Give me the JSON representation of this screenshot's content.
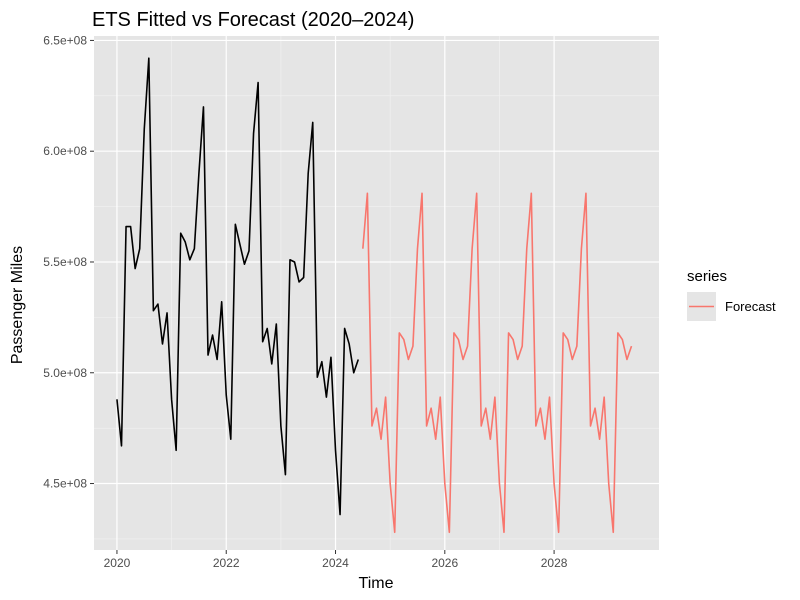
{
  "chart_data": {
    "type": "line",
    "title": "ETS Fitted vs Forecast (2020–2024)",
    "xlabel": "Time",
    "ylabel": "Passenger Miles",
    "xlim": [
      2019.58,
      2029.92
    ],
    "ylim": [
      420000000,
      652000000
    ],
    "x_ticks": [
      2020,
      2022,
      2024,
      2026,
      2028
    ],
    "x_tick_labels": [
      "2020",
      "2022",
      "2024",
      "2026",
      "2028"
    ],
    "y_ticks": [
      450000000,
      500000000,
      550000000,
      600000000,
      650000000
    ],
    "y_tick_labels": [
      "4.5e+08",
      "5.0e+08",
      "5.5e+08",
      "6.0e+08",
      "6.5e+08"
    ],
    "grid": true,
    "legend": {
      "title": "series",
      "position": "right",
      "entries": [
        "Forecast"
      ]
    },
    "series": [
      {
        "role": "fitted",
        "color": "#000000",
        "x_start": 2020.0,
        "x_step": 0.08333,
        "values": [
          488000000,
          467000000,
          566000000,
          566000000,
          547000000,
          556000000,
          610000000,
          642000000,
          528000000,
          531000000,
          513000000,
          527000000,
          488000000,
          465000000,
          563000000,
          559000000,
          551000000,
          556000000,
          590000000,
          620000000,
          508000000,
          517000000,
          506000000,
          532000000,
          490000000,
          470000000,
          567000000,
          558000000,
          549000000,
          555000000,
          608000000,
          631000000,
          514000000,
          520000000,
          504000000,
          522000000,
          476000000,
          454000000,
          551000000,
          550000000,
          541000000,
          543000000,
          590000000,
          613000000,
          498000000,
          505000000,
          489000000,
          507000000,
          465000000,
          436000000,
          520000000,
          513000000,
          500000000,
          506000000
        ]
      },
      {
        "name": "Forecast",
        "color": "#F8766D",
        "x_start": 2024.5,
        "x_step": 0.08333,
        "values": [
          556000000,
          581000000,
          476000000,
          484000000,
          470000000,
          489000000,
          450000000,
          428000000,
          518000000,
          515000000,
          506000000,
          512000000,
          556000000,
          581000000,
          476000000,
          484000000,
          470000000,
          489000000,
          450000000,
          428000000,
          518000000,
          515000000,
          506000000,
          512000000,
          556000000,
          581000000,
          476000000,
          484000000,
          470000000,
          489000000,
          450000000,
          428000000,
          518000000,
          515000000,
          506000000,
          512000000,
          556000000,
          581000000,
          476000000,
          484000000,
          470000000,
          489000000,
          450000000,
          428000000,
          518000000,
          515000000,
          506000000,
          512000000,
          556000000,
          581000000,
          476000000,
          484000000,
          470000000,
          489000000,
          450000000,
          428000000,
          518000000,
          515000000,
          506000000,
          512000000
        ]
      }
    ]
  }
}
